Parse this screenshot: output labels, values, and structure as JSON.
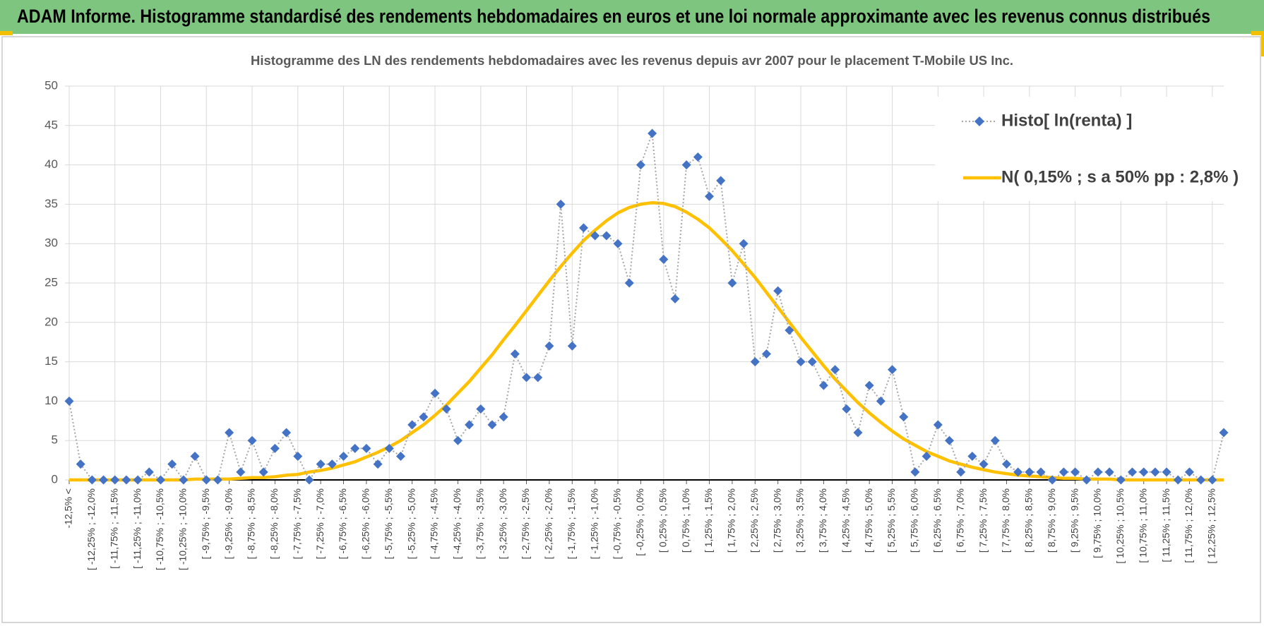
{
  "header": {
    "title": "ADAM Informe. Histogramme standardisé des rendements hebdomadaires en euros et une loi normale approximante avec les revenus connus distribués"
  },
  "chart_data": {
    "type": "line",
    "title": "Histogramme  des LN des rendements hebdomadaires avec les revenus depuis avr 2007 pour le placement T-Mobile US Inc.",
    "categories": [
      "-12,5% <",
      null,
      "[ -12,25% ; -12,0%",
      null,
      "[ -11,75% ; -11,5%",
      null,
      "[ -11,25% ; -11,0%",
      null,
      "[ -10,75% ; -10,5%",
      null,
      "[ -10,25% ; -10,0%",
      null,
      "[ -9,75% ; -9,5%",
      null,
      "[ -9,25% ; -9,0%",
      null,
      "[ -8,75% ; -8,5%",
      null,
      "[ -8,25% ; -8,0%",
      null,
      "[ -7,75% ; -7,5%",
      null,
      "[ -7,25% ; -7,0%",
      null,
      "[ -6,75% ; -6,5%",
      null,
      "[ -6,25% ; -6,0%",
      null,
      "[ -5,75% ; -5,5%",
      null,
      "[ -5,25% ; -5,0%",
      null,
      "[ -4,75% ; -4,5%",
      null,
      "[ -4,25% ; -4,0%",
      null,
      "[ -3,75% ; -3,5%",
      null,
      "[ -3,25% ; -3,0%",
      null,
      "[ -2,75% ; -2,5%",
      null,
      "[ -2,25% ; -2,0%",
      null,
      "[ -1,75% ; -1,5%",
      null,
      "[ -1,25% ; -1,0%",
      null,
      "[ -0,75% ; -0,5%",
      null,
      "[ -0,25% ; 0,0%",
      null,
      "[ 0,25% ; 0,5%",
      null,
      "[ 0,75% ; 1,0%",
      null,
      "[ 1,25% ; 1,5%",
      null,
      "[ 1,75% ; 2,0%",
      null,
      "[ 2,25% ; 2,5%",
      null,
      "[ 2,75% ; 3,0%",
      null,
      "[ 3,25% ; 3,5%",
      null,
      "[ 3,75% ; 4,0%",
      null,
      "[ 4,25% ; 4,5%",
      null,
      "[ 4,75% ; 5,0%",
      null,
      "[ 5,25% ; 5,5%",
      null,
      "[ 5,75% ; 6,0%",
      null,
      "[ 6,25% ; 6,5%",
      null,
      "[ 6,75% ; 7,0%",
      null,
      "[ 7,25% ; 7,5%",
      null,
      "[ 7,75% ; 8,0%",
      null,
      "[ 8,25% ; 8,5%",
      null,
      "[ 8,75% ; 9,0%",
      null,
      "[ 9,25% ; 9,5%",
      null,
      "[ 9,75% ; 10,0%",
      null,
      "[ 10,25% ; 10,5%",
      null,
      "[ 10,75% ; 11,0%",
      null,
      "[ 11,25% ; 11,5%",
      null,
      "[ 11,75% ; 12,0%",
      null,
      "[ 12,25% ; 12,5%",
      null
    ],
    "series": [
      {
        "name": "Histo[ ln(renta) ]",
        "color": "#4472c4",
        "line_color": "#a6a6a6",
        "values": [
          10,
          2,
          0,
          0,
          0,
          0,
          0,
          1,
          0,
          2,
          0,
          3,
          0,
          0,
          6,
          1,
          5,
          1,
          4,
          6,
          3,
          0,
          2,
          2,
          3,
          4,
          4,
          2,
          4,
          3,
          7,
          8,
          11,
          9,
          5,
          7,
          9,
          7,
          8,
          16,
          13,
          13,
          17,
          35,
          17,
          32,
          31,
          31,
          30,
          25,
          40,
          44,
          28,
          23,
          40,
          41,
          36,
          38,
          25,
          30,
          15,
          16,
          24,
          19,
          15,
          15,
          12,
          14,
          9,
          6,
          12,
          10,
          14,
          8,
          1,
          3,
          7,
          5,
          1,
          3,
          2,
          5,
          2,
          1,
          1,
          1,
          0,
          1,
          1,
          0,
          1,
          1,
          0,
          1,
          1,
          1,
          1,
          0,
          1,
          0,
          0,
          6
        ]
      },
      {
        "name": "N( 0,15% ; s a 50% pp : 2,8% )",
        "color": "#ffc000",
        "values": [
          0,
          0,
          0,
          0,
          0,
          0,
          0,
          0,
          0,
          0,
          0,
          0.1,
          0.1,
          0.1,
          0.1,
          0.2,
          0.3,
          0.3,
          0.4,
          0.6,
          0.7,
          1.0,
          1.2,
          1.5,
          1.9,
          2.3,
          2.9,
          3.5,
          4.2,
          5.0,
          6.0,
          7.0,
          8.2,
          9.5,
          11.0,
          12.5,
          14.2,
          15.9,
          17.8,
          19.6,
          21.5,
          23.4,
          25.3,
          27.1,
          28.8,
          30.4,
          31.7,
          32.9,
          33.9,
          34.6,
          35.0,
          35.2,
          35.1,
          34.7,
          34.0,
          33.1,
          32.0,
          30.6,
          29.1,
          27.4,
          25.7,
          23.8,
          21.9,
          20.0,
          18.1,
          16.3,
          14.5,
          12.8,
          11.3,
          9.8,
          8.5,
          7.3,
          6.2,
          5.2,
          4.4,
          3.6,
          3.0,
          2.4,
          2.0,
          1.6,
          1.3,
          1.0,
          0.8,
          0.6,
          0.5,
          0.4,
          0.3,
          0.2,
          0.2,
          0.1,
          0.1,
          0.1,
          0,
          0,
          0,
          0,
          0,
          0,
          0,
          0,
          0,
          0
        ]
      }
    ],
    "ylim": [
      0,
      50
    ],
    "yticks": [
      0,
      5,
      10,
      15,
      20,
      25,
      30,
      35,
      40,
      45,
      50
    ],
    "grid": true,
    "legend": "upper right"
  }
}
